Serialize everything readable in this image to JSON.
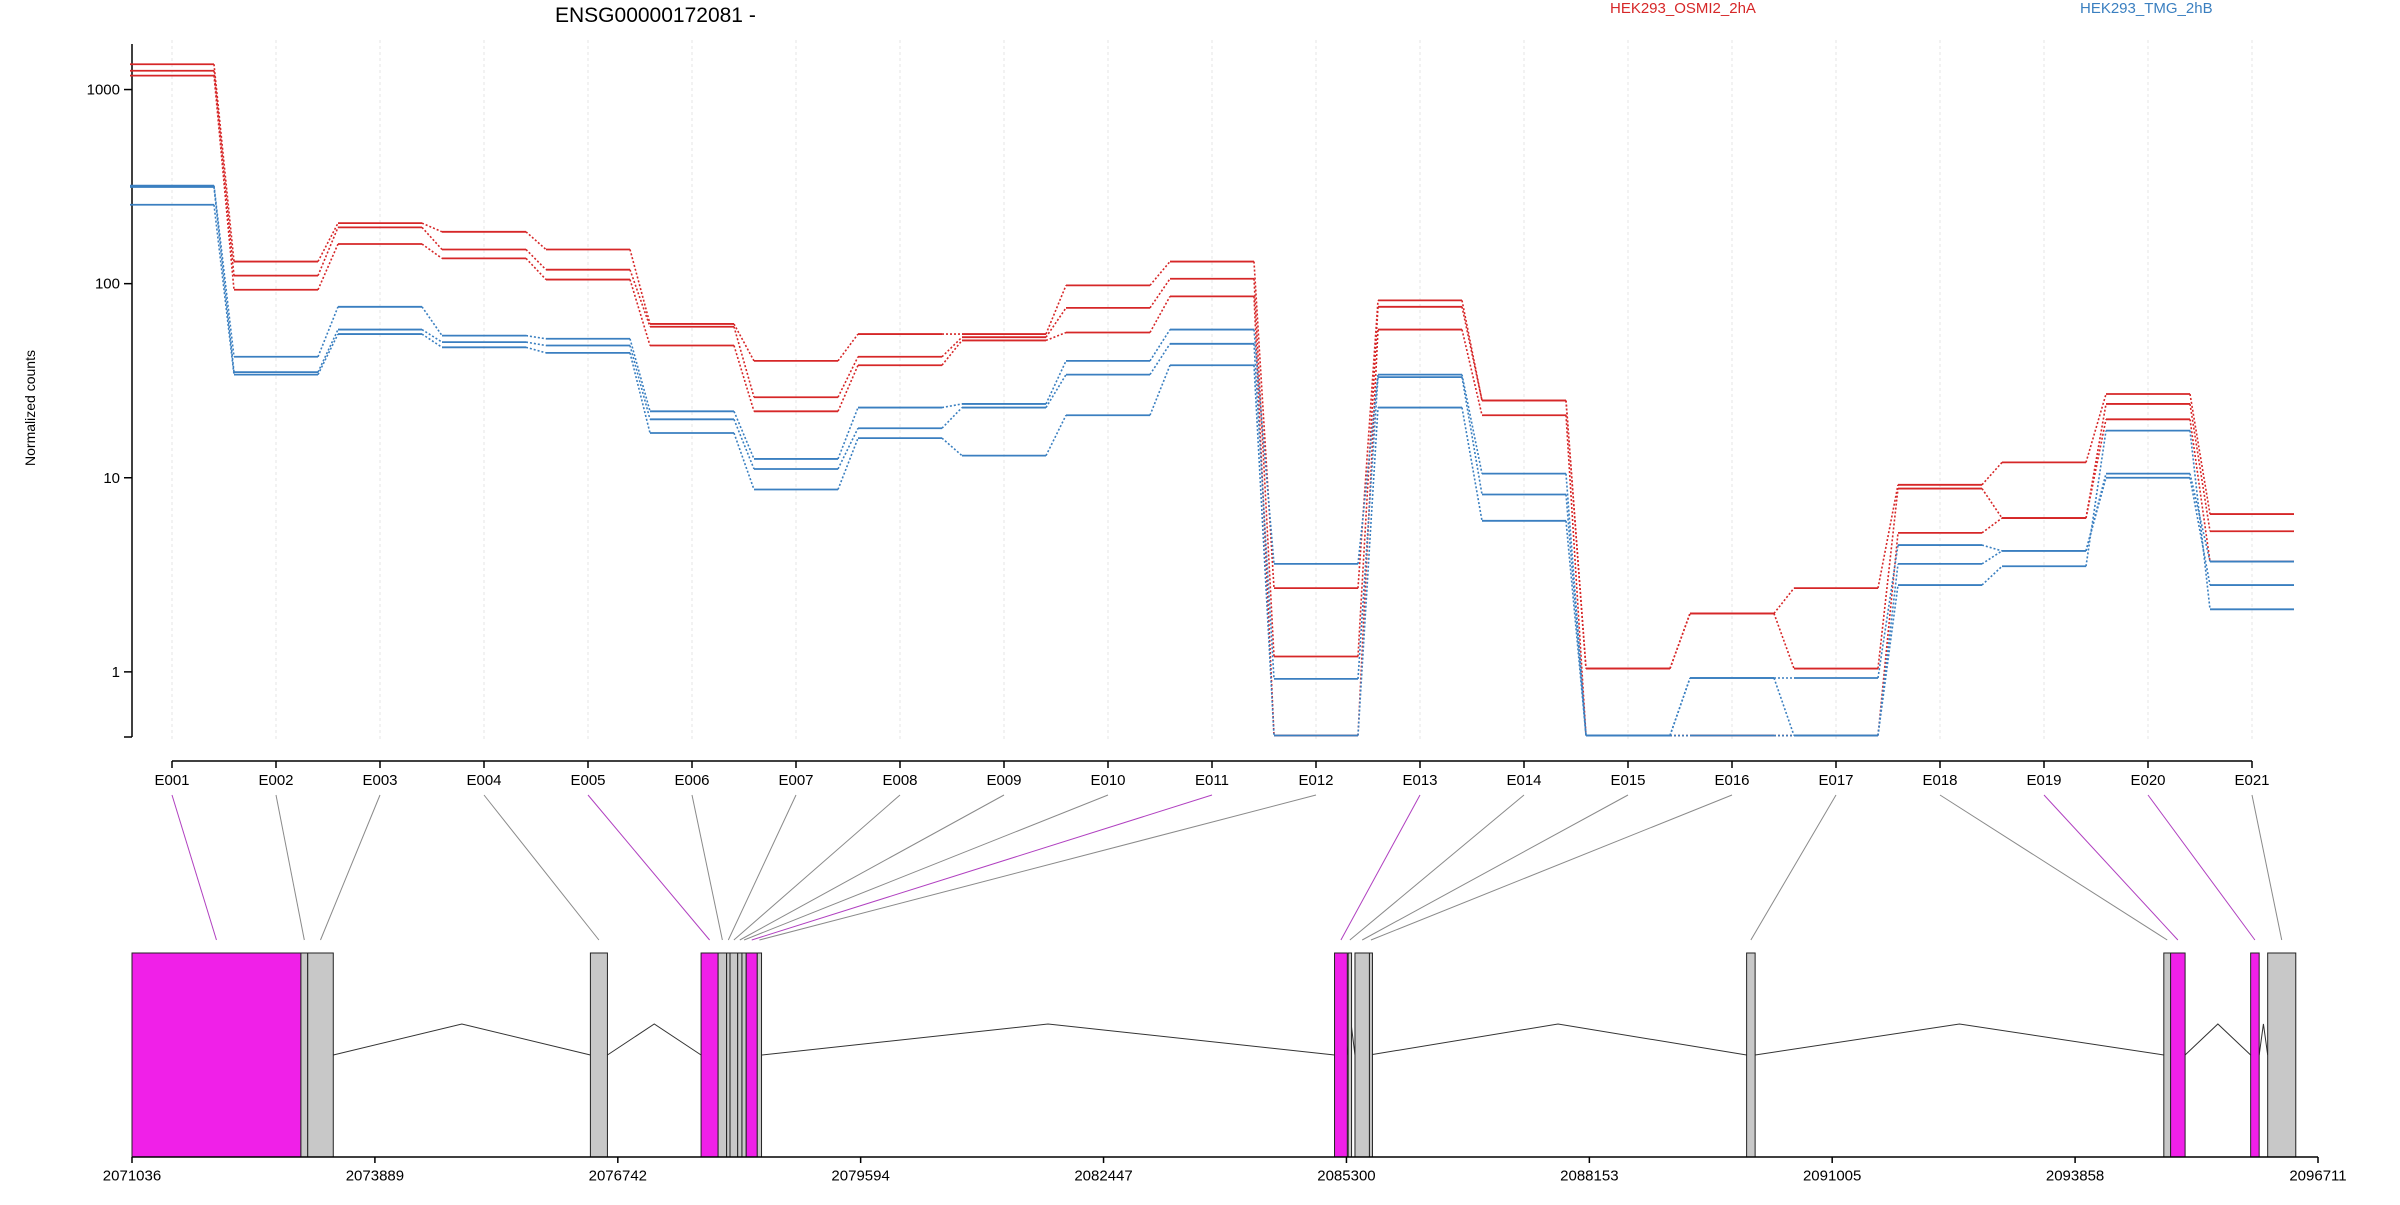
{
  "chart_data": {
    "type": "line",
    "title": "ENSG00000172081 -",
    "ylabel": "Normalized counts",
    "y_scale": "log",
    "ylim": [
      0.42,
      1800
    ],
    "y_ticks": [
      1,
      10,
      100,
      1000
    ],
    "categories": [
      "E001",
      "E002",
      "E003",
      "E004",
      "E005",
      "E006",
      "E007",
      "E008",
      "E009",
      "E010",
      "E011",
      "E012",
      "E013",
      "E014",
      "E015",
      "E016",
      "E017",
      "E018",
      "E019",
      "E020",
      "E021"
    ],
    "groups": [
      {
        "name": "HEK293_OSMI2_2hA",
        "color": "#d62728"
      },
      {
        "name": "HEK293_TMG_2hB",
        "color": "#3a7fc0"
      }
    ],
    "series": [
      {
        "group": 0,
        "values": [
          1350,
          130,
          205,
          185,
          150,
          62,
          40,
          55,
          55,
          98,
          130,
          2.7,
          82,
          25,
          1.04,
          2,
          2.7,
          9.2,
          12,
          27,
          6.5
        ]
      },
      {
        "group": 0,
        "values": [
          1250,
          110,
          195,
          150,
          118,
          60,
          26,
          42,
          53,
          75,
          106,
          1.2,
          76,
          25,
          1.04,
          2,
          1.04,
          8.8,
          6.2,
          24,
          5.3
        ]
      },
      {
        "group": 0,
        "values": [
          1180,
          93,
          160,
          135,
          105,
          48,
          22,
          38,
          51,
          56,
          86,
          0.47,
          58,
          21,
          0.47,
          0.47,
          0.47,
          5.2,
          6.2,
          20,
          3.7
        ]
      },
      {
        "group": 1,
        "values": [
          320,
          42,
          76,
          54,
          52,
          22,
          12.5,
          23,
          24,
          40,
          58,
          3.6,
          34,
          10.5,
          0.47,
          0.93,
          0.93,
          4.5,
          4.2,
          10.5,
          3.7
        ]
      },
      {
        "group": 1,
        "values": [
          315,
          35,
          58,
          50,
          48,
          20,
          11.1,
          18,
          23,
          34,
          49,
          0.92,
          33,
          8.2,
          0.47,
          0.93,
          0.47,
          3.6,
          4.2,
          10,
          2.8
        ]
      },
      {
        "group": 1,
        "values": [
          255,
          34,
          55,
          47,
          44,
          17,
          8.7,
          16,
          13,
          21,
          38,
          0.47,
          23,
          6,
          0.47,
          0.47,
          0.47,
          2.8,
          3.5,
          17.5,
          2.1
        ]
      }
    ],
    "gene_axis": {
      "ticks": [
        "2071036",
        "2073889",
        "2076742",
        "2079594",
        "2082447",
        "2085300",
        "2088153",
        "2091005",
        "2093858",
        "2096711"
      ],
      "range": [
        2071036,
        2096711
      ]
    },
    "exons": [
      {
        "id": "E001",
        "start": 2071036,
        "end": 2073020,
        "highlighted": true
      },
      {
        "id": "E002",
        "start": 2073020,
        "end": 2073100,
        "highlighted": false
      },
      {
        "id": "E003",
        "start": 2073100,
        "end": 2073400,
        "highlighted": false
      },
      {
        "id": "E004",
        "start": 2076420,
        "end": 2076620,
        "highlighted": false
      },
      {
        "id": "E005",
        "start": 2077720,
        "end": 2077920,
        "highlighted": true
      },
      {
        "id": "E006",
        "start": 2077920,
        "end": 2078020,
        "highlighted": false
      },
      {
        "id": "E007",
        "start": 2078020,
        "end": 2078060,
        "highlighted": false
      },
      {
        "id": "E008",
        "start": 2078060,
        "end": 2078150,
        "highlighted": false
      },
      {
        "id": "E009",
        "start": 2078150,
        "end": 2078200,
        "highlighted": false
      },
      {
        "id": "E010",
        "start": 2078200,
        "end": 2078250,
        "highlighted": false
      },
      {
        "id": "E011",
        "start": 2078250,
        "end": 2078380,
        "highlighted": true
      },
      {
        "id": "E012",
        "start": 2078380,
        "end": 2078430,
        "highlighted": false
      },
      {
        "id": "E013",
        "start": 2085160,
        "end": 2085310,
        "highlighted": true
      },
      {
        "id": "E014",
        "start": 2085320,
        "end": 2085360,
        "highlighted": false
      },
      {
        "id": "E015",
        "start": 2085400,
        "end": 2085570,
        "highlighted": false
      },
      {
        "id": "E016",
        "start": 2085570,
        "end": 2085580,
        "highlighted": false
      },
      {
        "id": "E017",
        "start": 2090000,
        "end": 2090100,
        "highlighted": false
      },
      {
        "id": "E018",
        "start": 2094900,
        "end": 2094980,
        "highlighted": false
      },
      {
        "id": "E019",
        "start": 2094980,
        "end": 2095150,
        "highlighted": true
      },
      {
        "id": "E020",
        "start": 2095920,
        "end": 2096020,
        "highlighted": true
      },
      {
        "id": "E021",
        "start": 2096120,
        "end": 2096450,
        "highlighted": false
      }
    ],
    "introns": [
      [
        2073400,
        2076420
      ],
      [
        2076620,
        2077720
      ],
      [
        2078430,
        2085160
      ],
      [
        2085310,
        2085400
      ],
      [
        2085570,
        2090000
      ],
      [
        2090100,
        2094900
      ],
      [
        2095150,
        2095920
      ],
      [
        2096020,
        2096120
      ]
    ],
    "exon_fill": "#c8c8c8",
    "highlight_fill": "#f020e8",
    "grid": true
  }
}
